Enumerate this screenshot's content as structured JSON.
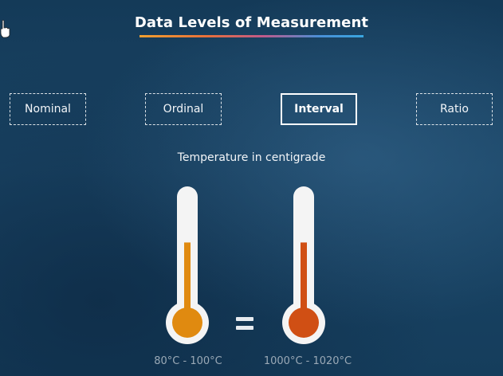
{
  "title": "Data Levels of Measurement",
  "levels": [
    {
      "label": "Nominal",
      "active": false
    },
    {
      "label": "Ordinal",
      "active": false
    },
    {
      "label": "Interval",
      "active": true
    },
    {
      "label": "Ratio",
      "active": false
    }
  ],
  "caption": "Temperature in centigrade",
  "thermometers": [
    {
      "range": "80°C - 100°C",
      "fill_level": 0.6,
      "color": "#e08a10"
    },
    {
      "range": "1000°C - 1020°C",
      "fill_level": 0.6,
      "color": "#d04f14"
    }
  ],
  "equals_sign": "=",
  "colors": {
    "background": "#1a4566",
    "title_underline": [
      "#f0a030",
      "#e8703a",
      "#c05a8a",
      "#4a8fd6",
      "#39a6e0"
    ],
    "label_muted": "#9aa9b6"
  },
  "icons": {
    "cursor": "hand-pointer-icon",
    "equals": "equals-icon",
    "thermometer": "thermometer-icon"
  }
}
